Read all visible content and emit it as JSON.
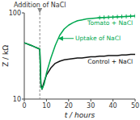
{
  "chart_data": {
    "type": "line",
    "title": "Addition of NaCl",
    "xlabel": "t / hours",
    "ylabel": "Z / kΩ",
    "log": "y",
    "grid": false,
    "xlim": [
      0,
      50
    ],
    "ylim": [
      10,
      100
    ],
    "xticks": [
      0,
      10,
      20,
      30,
      40,
      50
    ],
    "yticks": [
      10,
      100
    ],
    "vlines": [
      7
    ],
    "annotations": [
      {
        "text": "Uptake of NaCl"
      }
    ],
    "series": [
      {
        "name": "Control + NaCl",
        "type": "line",
        "color": "#111111",
        "x": [
          0,
          1,
          2,
          3,
          4,
          5,
          6,
          7,
          7.5,
          8,
          9,
          10,
          12,
          14,
          16,
          18,
          20,
          22,
          24,
          26,
          28,
          30,
          32,
          34,
          36,
          38,
          40,
          42,
          44,
          46,
          48,
          50
        ],
        "values": [
          45,
          44,
          43,
          42,
          41,
          40,
          39,
          38,
          15,
          13,
          16,
          19,
          23,
          26,
          27.5,
          28.5,
          29,
          29.5,
          30,
          30,
          30.5,
          31,
          31,
          31.5,
          31.5,
          32,
          32,
          32,
          32.5,
          32.5,
          33,
          33
        ]
      },
      {
        "name": "Tomato + NaCl",
        "type": "line",
        "color": "#00a850",
        "x": [
          0,
          1,
          2,
          3,
          4,
          5,
          6,
          7,
          7.5,
          8,
          9,
          10,
          12,
          14,
          16,
          18,
          20,
          22,
          24,
          26,
          28,
          30,
          32,
          34,
          36,
          38,
          40,
          42,
          44,
          46,
          48,
          50
        ],
        "values": [
          45,
          44,
          43,
          42,
          41,
          40,
          39,
          38,
          14,
          13,
          15,
          20,
          30,
          42,
          55,
          65,
          72,
          77,
          81,
          83,
          85,
          86,
          87,
          88,
          88.5,
          89,
          89.5,
          90,
          90.5,
          91,
          91.5,
          92
        ]
      },
      {
        "type": "scatter",
        "marker": "plus",
        "color": "#00a850",
        "x": [
          34,
          36,
          38,
          40,
          42,
          44,
          46,
          48,
          50
        ],
        "values": [
          88,
          88.5,
          89,
          89,
          90,
          90.5,
          91,
          91.5,
          92
        ]
      }
    ]
  }
}
